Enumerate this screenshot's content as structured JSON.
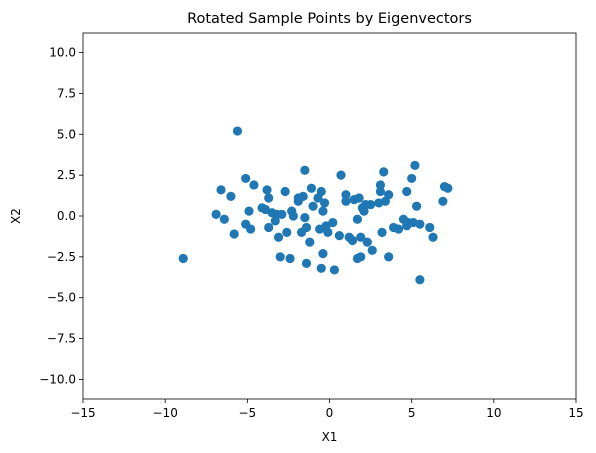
{
  "chart_data": {
    "type": "scatter",
    "title": "Rotated Sample Points by Eigenvectors",
    "xlabel": "X1",
    "ylabel": "X2",
    "xlim": [
      -15,
      15
    ],
    "ylim": [
      -11.2,
      11.2
    ],
    "xticks": [
      -15,
      -10,
      -5,
      0,
      5,
      10,
      15
    ],
    "yticks": [
      -10.0,
      -7.5,
      -5.0,
      -2.5,
      0.0,
      2.5,
      5.0,
      7.5,
      10.0
    ],
    "xtick_labels": [
      "−15",
      "−10",
      "−5",
      "0",
      "5",
      "10",
      "15"
    ],
    "ytick_labels": [
      "−10.0",
      "−7.5",
      "−5.0",
      "−2.5",
      "0.0",
      "2.5",
      "5.0",
      "7.5",
      "10.0"
    ],
    "grid": false,
    "legend": "none",
    "marker_color": "#1f77b4",
    "points": [
      {
        "x": -8.9,
        "y": -2.6
      },
      {
        "x": -6.9,
        "y": 0.1
      },
      {
        "x": -6.6,
        "y": 1.6
      },
      {
        "x": -6.4,
        "y": -0.2
      },
      {
        "x": -6.0,
        "y": 1.2
      },
      {
        "x": -5.8,
        "y": -1.1
      },
      {
        "x": -5.6,
        "y": 5.2
      },
      {
        "x": -5.1,
        "y": 2.3
      },
      {
        "x": -5.1,
        "y": -0.5
      },
      {
        "x": -4.9,
        "y": 0.3
      },
      {
        "x": -4.8,
        "y": -0.8
      },
      {
        "x": -4.6,
        "y": 1.9
      },
      {
        "x": -4.1,
        "y": 0.5
      },
      {
        "x": -3.9,
        "y": 0.4
      },
      {
        "x": -3.8,
        "y": 1.6
      },
      {
        "x": -3.7,
        "y": 1.1
      },
      {
        "x": -3.7,
        "y": -0.7
      },
      {
        "x": -3.5,
        "y": 0.2
      },
      {
        "x": -3.3,
        "y": -0.3
      },
      {
        "x": -3.2,
        "y": 0.1
      },
      {
        "x": -3.1,
        "y": -1.3
      },
      {
        "x": -3.0,
        "y": -2.5
      },
      {
        "x": -2.9,
        "y": 0.1
      },
      {
        "x": -2.7,
        "y": 1.5
      },
      {
        "x": -2.6,
        "y": -1.0
      },
      {
        "x": -2.3,
        "y": 0.3
      },
      {
        "x": -2.4,
        "y": -2.6
      },
      {
        "x": -2.2,
        "y": 0.0
      },
      {
        "x": -1.9,
        "y": 0.9
      },
      {
        "x": -1.9,
        "y": 1.1
      },
      {
        "x": -1.6,
        "y": 1.2
      },
      {
        "x": -1.7,
        "y": -1.0
      },
      {
        "x": -1.5,
        "y": 2.8
      },
      {
        "x": -1.5,
        "y": -0.1
      },
      {
        "x": -1.4,
        "y": -0.7
      },
      {
        "x": -1.4,
        "y": -2.9
      },
      {
        "x": -1.2,
        "y": -1.6
      },
      {
        "x": -1.1,
        "y": 1.7
      },
      {
        "x": -1.0,
        "y": 0.6
      },
      {
        "x": -0.7,
        "y": 1.1
      },
      {
        "x": -0.6,
        "y": -0.8
      },
      {
        "x": -0.5,
        "y": 1.5
      },
      {
        "x": -0.4,
        "y": 0.3
      },
      {
        "x": -0.4,
        "y": -2.3
      },
      {
        "x": -0.5,
        "y": -3.2
      },
      {
        "x": -0.3,
        "y": 0.8
      },
      {
        "x": -0.2,
        "y": -0.6
      },
      {
        "x": -0.1,
        "y": -1.0
      },
      {
        "x": 0.2,
        "y": -0.4
      },
      {
        "x": 0.3,
        "y": -3.3
      },
      {
        "x": 0.6,
        "y": -1.2
      },
      {
        "x": 0.7,
        "y": 2.5
      },
      {
        "x": 1.0,
        "y": 1.3
      },
      {
        "x": 1.0,
        "y": 0.9
      },
      {
        "x": 1.2,
        "y": -1.3
      },
      {
        "x": 1.4,
        "y": -1.5
      },
      {
        "x": 1.5,
        "y": 1.0
      },
      {
        "x": 1.7,
        "y": -0.2
      },
      {
        "x": 1.7,
        "y": -2.6
      },
      {
        "x": 1.8,
        "y": 1.1
      },
      {
        "x": 1.9,
        "y": -1.3
      },
      {
        "x": 1.9,
        "y": -2.5
      },
      {
        "x": 2.0,
        "y": 0.5
      },
      {
        "x": 2.1,
        "y": 0.3
      },
      {
        "x": 2.2,
        "y": 0.7
      },
      {
        "x": 2.3,
        "y": -1.6
      },
      {
        "x": 2.5,
        "y": 0.7
      },
      {
        "x": 2.6,
        "y": -2.1
      },
      {
        "x": 3.0,
        "y": 0.8
      },
      {
        "x": 3.1,
        "y": 1.5
      },
      {
        "x": 3.1,
        "y": 1.9
      },
      {
        "x": 3.2,
        "y": -1.0
      },
      {
        "x": 3.4,
        "y": 0.9
      },
      {
        "x": 3.3,
        "y": 2.7
      },
      {
        "x": 3.6,
        "y": 1.3
      },
      {
        "x": 3.6,
        "y": -2.5
      },
      {
        "x": 3.9,
        "y": -0.7
      },
      {
        "x": 4.2,
        "y": -0.8
      },
      {
        "x": 4.5,
        "y": -0.2
      },
      {
        "x": 4.7,
        "y": 1.5
      },
      {
        "x": 4.7,
        "y": -0.6
      },
      {
        "x": 4.8,
        "y": -0.4
      },
      {
        "x": 5.0,
        "y": 2.3
      },
      {
        "x": 5.1,
        "y": -0.4
      },
      {
        "x": 5.2,
        "y": 3.1
      },
      {
        "x": 5.3,
        "y": 0.6
      },
      {
        "x": 5.5,
        "y": -0.5
      },
      {
        "x": 5.5,
        "y": -3.9
      },
      {
        "x": 6.1,
        "y": -0.7
      },
      {
        "x": 6.3,
        "y": -1.3
      },
      {
        "x": 6.9,
        "y": 0.9
      },
      {
        "x": 7.0,
        "y": 1.8
      },
      {
        "x": 7.2,
        "y": 1.7
      }
    ]
  }
}
